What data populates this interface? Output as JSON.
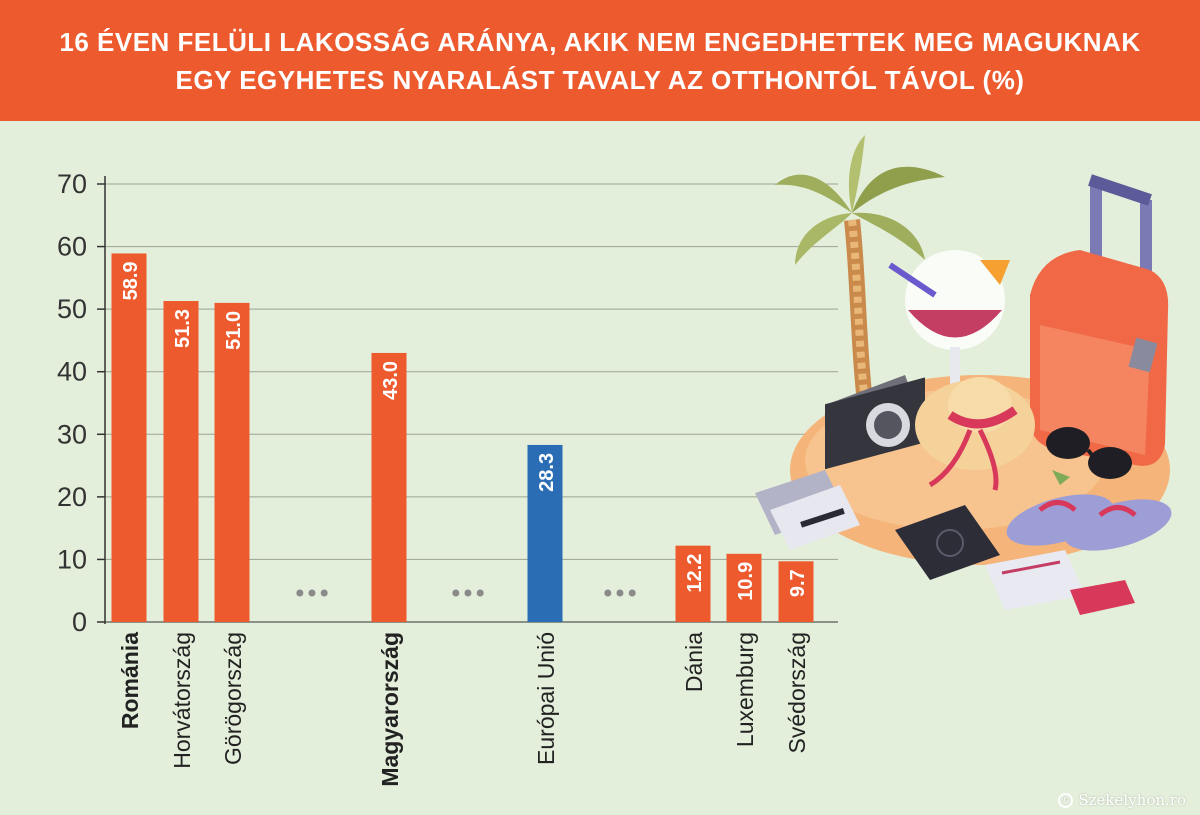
{
  "title_line1": "16 ÉVEN FELÜLI LAKOSSÁG ARÁNYA, AKIK NEM ENGEDHETTEK MEG MAGUKNAK",
  "title_line2": "EGY EGYHETES NYARALÁST TAVALY AZ OTTHONTÓL TÁVOL (%)",
  "watermark": "Székelyhon.ro",
  "colors": {
    "header": "#ec5a2e",
    "background": "#e4efdb",
    "bar": "#ec5a2e",
    "highlight_bar": "#2a6db5",
    "axis": "#333333",
    "grid": "#9aa394",
    "dots": "#8a8a8a"
  },
  "chart_data": {
    "type": "bar",
    "title": "16 ÉVEN FELÜLI LAKOSSÁG ARÁNYA, AKIK NEM ENGEDHETTEK MEG MAGUKNAK EGY EGYHETES NYARALÁST TAVALY AZ OTTHONTÓL TÁVOL (%)",
    "xlabel": "",
    "ylabel": "",
    "ylim": [
      0,
      70
    ],
    "yticks": [
      0,
      10,
      20,
      30,
      40,
      50,
      60,
      70
    ],
    "grid": true,
    "categories": [
      "Románia",
      "Horvátország",
      "Görögország",
      "Magyarország",
      "Európai Unió",
      "Dánia",
      "Luxemburg",
      "Svédország"
    ],
    "values": [
      58.9,
      51.3,
      51.0,
      43.0,
      28.3,
      12.2,
      10.9,
      9.7
    ],
    "value_labels": [
      "58.9",
      "51.3",
      "51.0",
      "43.0",
      "28.3",
      "12.2",
      "10.9",
      "9.7"
    ],
    "bold_categories": [
      "Románia",
      "Magyarország"
    ],
    "highlight_category": "Európai Unió",
    "gap_markers": [
      "•••",
      "•••",
      "•••"
    ]
  }
}
